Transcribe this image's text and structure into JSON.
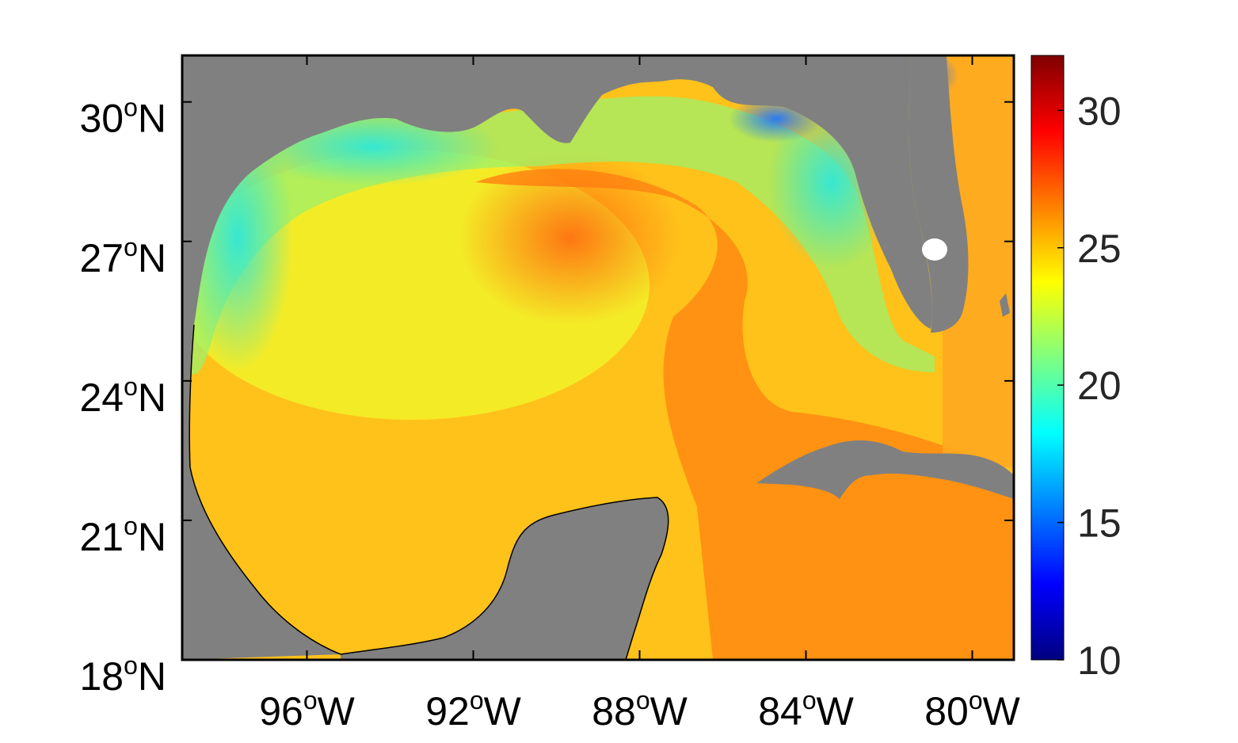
{
  "map": {
    "extent": {
      "lon_min": -99,
      "lon_max": -79,
      "lat_min": 18,
      "lat_max": 31
    },
    "land_color": "#808080",
    "frame_color": "#000000",
    "x_ticks": [
      {
        "lon": -96,
        "num": "96",
        "deg": "o",
        "hem": "W"
      },
      {
        "lon": -92,
        "num": "92",
        "deg": "o",
        "hem": "W"
      },
      {
        "lon": -88,
        "num": "88",
        "deg": "o",
        "hem": "W"
      },
      {
        "lon": -84,
        "num": "84",
        "deg": "o",
        "hem": "W"
      },
      {
        "lon": -80,
        "num": "80",
        "deg": "o",
        "hem": "W"
      }
    ],
    "y_ticks": [
      {
        "lat": 30,
        "num": "30",
        "deg": "o",
        "hem": "N"
      },
      {
        "lat": 27,
        "num": "27",
        "deg": "o",
        "hem": "N"
      },
      {
        "lat": 24,
        "num": "24",
        "deg": "o",
        "hem": "N"
      },
      {
        "lat": 21,
        "num": "21",
        "deg": "o",
        "hem": "N"
      },
      {
        "lat": 18,
        "num": "18",
        "deg": "o",
        "hem": "N"
      }
    ]
  },
  "colorbar": {
    "min": 10,
    "max": 32,
    "colormap": "jet",
    "ticks": [
      {
        "value": 30,
        "label": "30"
      },
      {
        "value": 25,
        "label": "25"
      },
      {
        "value": 20,
        "label": "20"
      },
      {
        "value": 15,
        "label": "15"
      },
      {
        "value": 10,
        "label": "10"
      }
    ]
  }
}
